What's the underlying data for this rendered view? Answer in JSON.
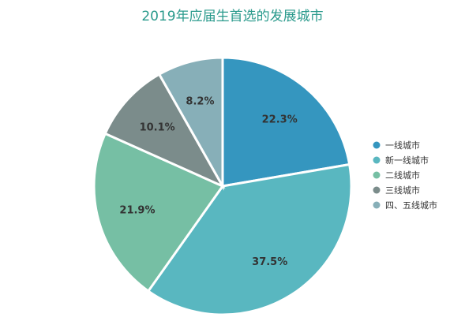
{
  "chart_data": {
    "type": "pie",
    "title": "2019年应届生首选的发展城市",
    "categories": [
      "一线城市",
      "新一线城市",
      "二线城市",
      "三线城市",
      "四、五线城市"
    ],
    "values": [
      22.3,
      37.5,
      21.9,
      10.1,
      8.2
    ],
    "labels": [
      "22.3%",
      "37.5%",
      "21.9%",
      "10.1%",
      "8.2%"
    ],
    "colors": [
      "#3596bf",
      "#59b7c0",
      "#76bfa4",
      "#7b8c8b",
      "#87afb8"
    ],
    "legend_position": "right"
  }
}
